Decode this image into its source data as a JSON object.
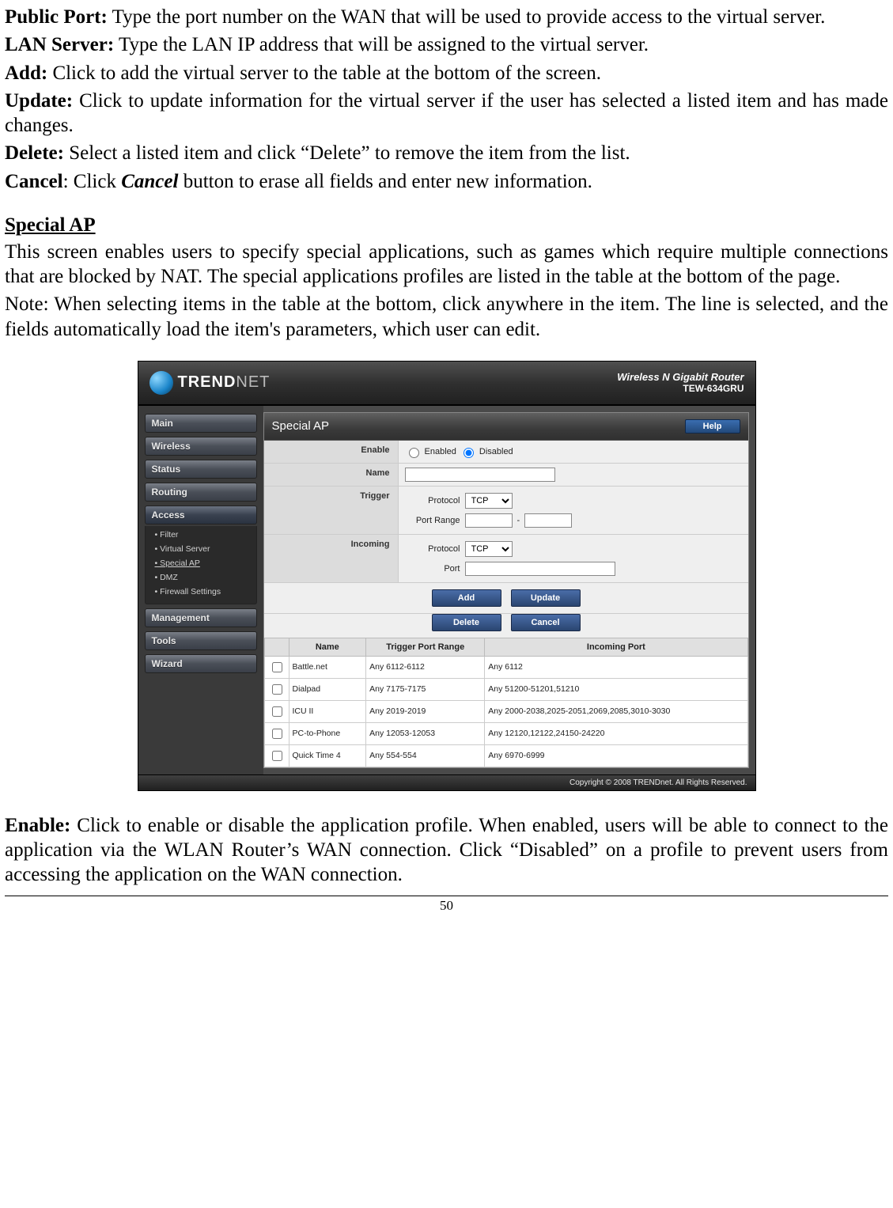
{
  "doc": {
    "p1_label": "Public Port:",
    "p1_text": " Type the port number on the WAN that will be used to provide access to the virtual server.",
    "p2_label": "LAN Server:",
    "p2_text": " Type the LAN IP address that will be assigned to the virtual server.",
    "p3_label": "Add:",
    "p3_text": " Click to add the virtual server to the table at the bottom of the screen.",
    "p4_label": "Update:",
    "p4_text": " Click to update information for the virtual server if the user has selected a listed item and has made changes.",
    "p5_label": "Delete:",
    "p5_text": " Select a listed item and click “Delete” to remove the item from the list.",
    "p6_label": "Cancel",
    "p6_sep": ": Click ",
    "p6_em": "Cancel",
    "p6_text": " button to erase all fields and enter new information.",
    "section_title": "Special AP",
    "sp1": "This screen enables users to specify special applications, such as games which require multiple connections that are blocked by NAT. The special applications profiles are listed in the table at the bottom of the page.",
    "sp2": "Note: When selecting items in the table at the bottom, click anywhere in the item. The line is selected, and the fields automatically load the item's parameters, which user can edit.",
    "enable_label": "Enable:",
    "enable_text": " Click to enable or disable the application profile. When enabled, users will be able to connect to the application via the WLAN Router’s WAN connection. Click “Disabled” on a profile to prevent users from accessing the application on the WAN connection.",
    "page_number": "50"
  },
  "ui": {
    "brand_trend": "TREND",
    "brand_net": "NET",
    "product_line1": "Wireless N Gigabit Router",
    "product_line2": "TEW-634GRU",
    "nav": {
      "main": "Main",
      "wireless": "Wireless",
      "status": "Status",
      "routing": "Routing",
      "access": "Access",
      "management": "Management",
      "tools": "Tools",
      "wizard": "Wizard"
    },
    "subnav": {
      "filter": "• Filter",
      "virtual_server": "• Virtual Server",
      "special_ap": "• Special AP",
      "dmz": "• DMZ",
      "firewall": "• Firewall Settings"
    },
    "panel_title": "Special AP",
    "help_btn": "Help",
    "labels": {
      "enable": "Enable",
      "name": "Name",
      "trigger": "Trigger",
      "incoming": "Incoming",
      "protocol": "Protocol",
      "port_range": "Port Range",
      "port": "Port",
      "enabled_opt": "Enabled",
      "disabled_opt": "Disabled",
      "tcp": "TCP",
      "dash": "-"
    },
    "buttons": {
      "add": "Add",
      "update": "Update",
      "delete": "Delete",
      "cancel": "Cancel"
    },
    "table": {
      "col_name": "Name",
      "col_trigger": "Trigger Port Range",
      "col_incoming": "Incoming Port",
      "rows": [
        {
          "name": "Battle.net",
          "trigger": "Any 6112-6112",
          "incoming": "Any 6112"
        },
        {
          "name": "Dialpad",
          "trigger": "Any 7175-7175",
          "incoming": "Any 51200-51201,51210"
        },
        {
          "name": "ICU II",
          "trigger": "Any 2019-2019",
          "incoming": "Any 2000-2038,2025-2051,2069,2085,3010-3030"
        },
        {
          "name": "PC-to-Phone",
          "trigger": "Any 12053-12053",
          "incoming": "Any 12120,12122,24150-24220"
        },
        {
          "name": "Quick Time 4",
          "trigger": "Any 554-554",
          "incoming": "Any 6970-6999"
        }
      ]
    },
    "copyright": "Copyright © 2008 TRENDnet. All Rights Reserved."
  },
  "colors": {
    "header_grad_top": "#505050",
    "header_grad_bot": "#202020",
    "button_blue_top": "#4a6da8",
    "button_blue_bot": "#2a4570",
    "content_bg": "#e8e8e8"
  }
}
